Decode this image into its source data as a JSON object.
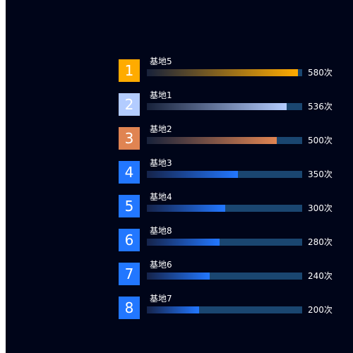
{
  "ranking": {
    "max_value": 580,
    "items": [
      {
        "rank": "1",
        "name": "基地5",
        "value": 580,
        "value_label": "580次",
        "color": "#ffab00",
        "track_color": "#1a4670",
        "fill_start": "#17213a"
      },
      {
        "rank": "2",
        "name": "基地1",
        "value": 536,
        "value_label": "536次",
        "color": "#b3ccff",
        "track_color": "#1a4670",
        "fill_start": "#17213a"
      },
      {
        "rank": "3",
        "name": "基地2",
        "value": 500,
        "value_label": "500次",
        "color": "#e08452",
        "track_color": "#1a4670",
        "fill_start": "#17213a"
      },
      {
        "rank": "4",
        "name": "基地3",
        "value": 350,
        "value_label": "350次",
        "color": "#2277ff",
        "track_color": "#1a4670",
        "fill_start": "#15234a"
      },
      {
        "rank": "5",
        "name": "基地4",
        "value": 300,
        "value_label": "300次",
        "color": "#2277ff",
        "track_color": "#1a4670",
        "fill_start": "#15234a"
      },
      {
        "rank": "6",
        "name": "基地8",
        "value": 280,
        "value_label": "280次",
        "color": "#2277ff",
        "track_color": "#1a4670",
        "fill_start": "#15234a"
      },
      {
        "rank": "7",
        "name": "基地6",
        "value": 240,
        "value_label": "240次",
        "color": "#2277ff",
        "track_color": "#1a4670",
        "fill_start": "#15234a"
      },
      {
        "rank": "8",
        "name": "基地7",
        "value": 200,
        "value_label": "200次",
        "color": "#2277ff",
        "track_color": "#1a4670",
        "fill_start": "#15234a"
      }
    ]
  }
}
